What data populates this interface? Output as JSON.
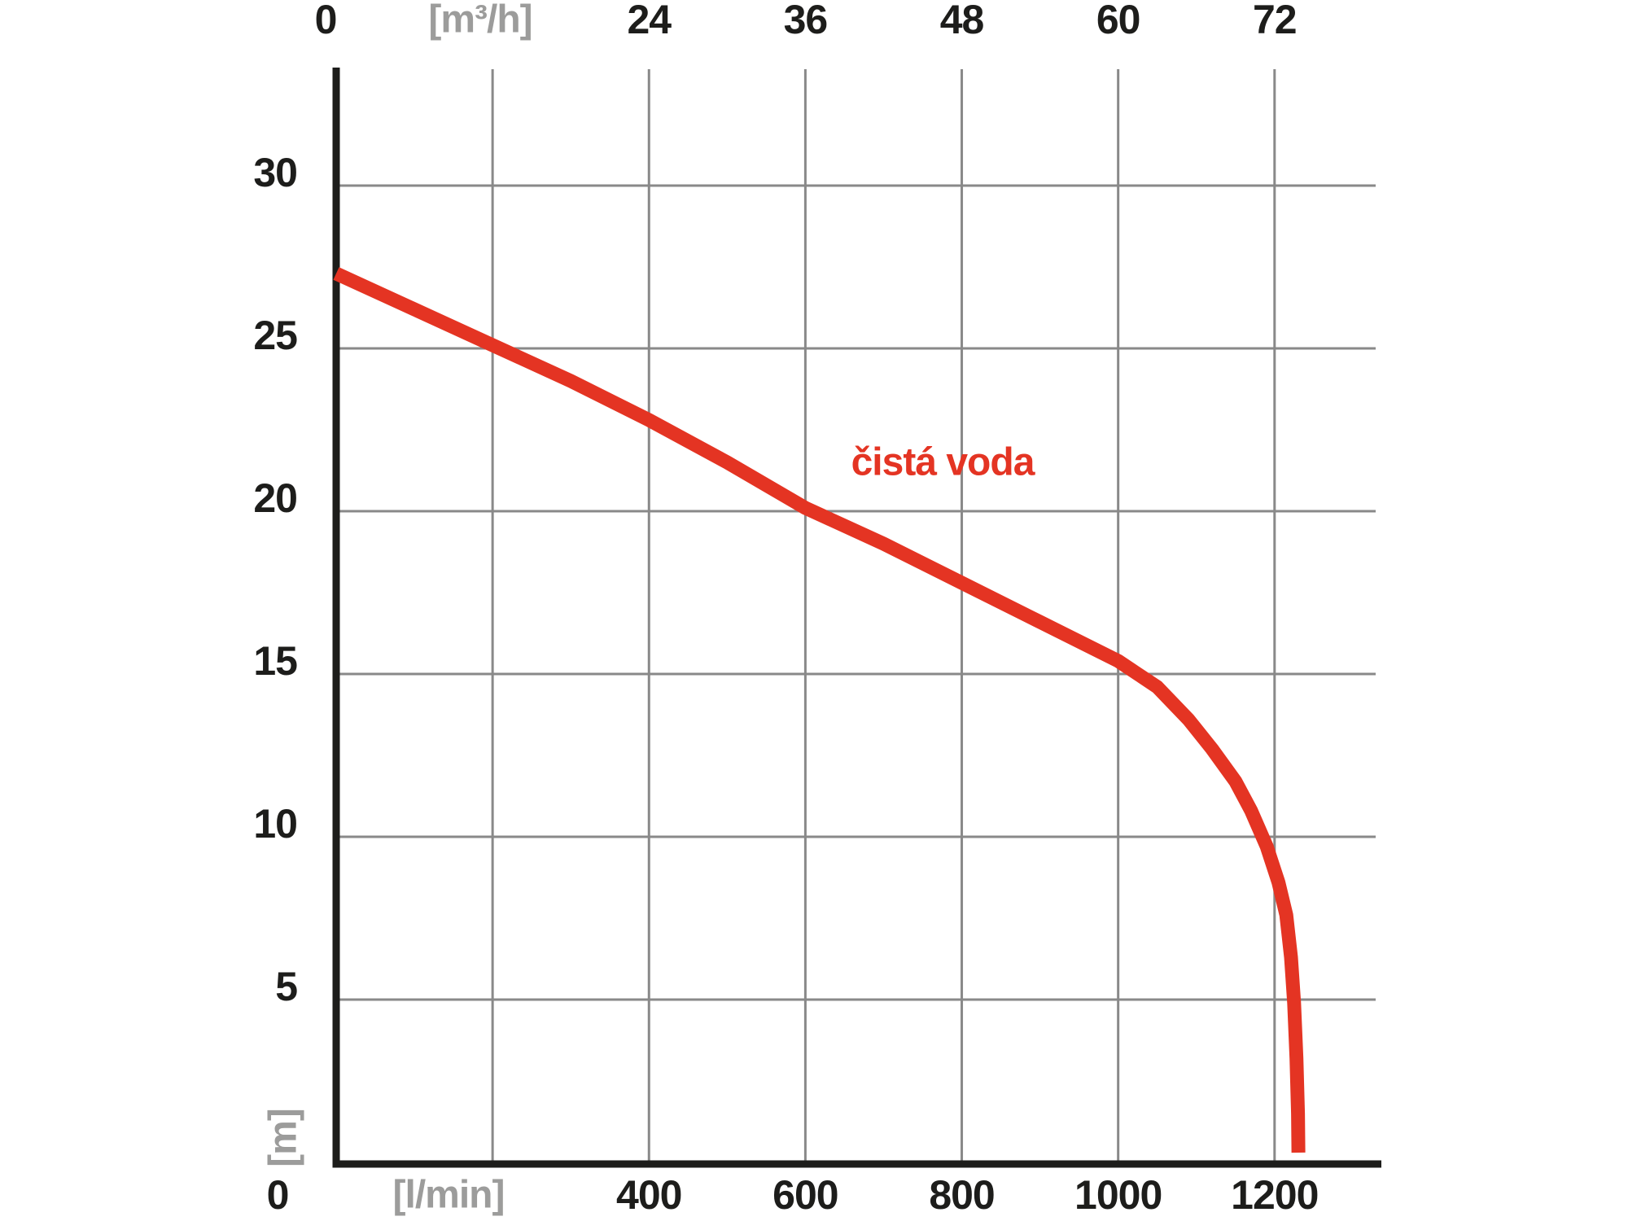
{
  "chart_data": {
    "type": "line",
    "title": "",
    "series": [
      {
        "name": "čistá voda",
        "color": "#e43423",
        "x_unit": "l/min",
        "y_unit": "m",
        "points": [
          [
            0,
            27.3
          ],
          [
            100,
            26.2
          ],
          [
            200,
            25.1
          ],
          [
            300,
            24.0
          ],
          [
            400,
            22.8
          ],
          [
            500,
            21.5
          ],
          [
            600,
            20.1
          ],
          [
            700,
            19.0
          ],
          [
            800,
            17.8
          ],
          [
            900,
            16.6
          ],
          [
            1000,
            15.4
          ],
          [
            1050,
            14.6
          ],
          [
            1090,
            13.6
          ],
          [
            1120,
            12.7
          ],
          [
            1150,
            11.7
          ],
          [
            1170,
            10.8
          ],
          [
            1190,
            9.7
          ],
          [
            1205,
            8.6
          ],
          [
            1215,
            7.6
          ],
          [
            1221,
            6.3
          ],
          [
            1225,
            4.9
          ],
          [
            1228,
            3.2
          ],
          [
            1230,
            1.5
          ],
          [
            1230.5,
            0.3
          ]
        ]
      }
    ],
    "top_axis": {
      "unit_label": "[m³/h]",
      "ticks": [
        0,
        24,
        36,
        48,
        60,
        72
      ]
    },
    "bottom_axis": {
      "unit_label": "[l/min]",
      "ticks": [
        0,
        400,
        600,
        800,
        1000,
        1200
      ],
      "origin_label": "0"
    },
    "left_axis": {
      "unit_label": "[m]",
      "ticks": [
        30,
        25,
        20,
        15,
        10,
        5
      ]
    },
    "x_range_l_min": [
      0,
      1330
    ],
    "y_range_m": [
      0,
      33.5
    ],
    "grid": true,
    "legend_position": "none",
    "colors": {
      "grid": "#898989",
      "axis": "#1d1d1b",
      "tick_label": "#1d1d1b",
      "unit_label": "#9c9c9b",
      "series": "#e43423",
      "background": "#ffffff"
    }
  }
}
